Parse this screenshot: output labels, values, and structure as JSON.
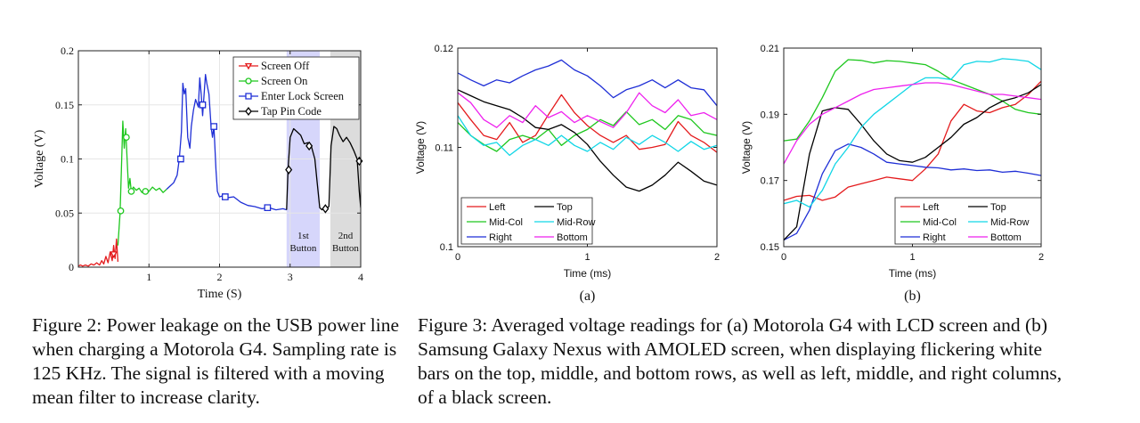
{
  "captions": {
    "fig2": "Figure 2: Power leakage on the USB power line when charging a Motorola G4. Sampling rate is 125 KHz. The signal is filtered with a moving mean filter to increase clarity.",
    "fig3": "Figure 3: Averaged voltage readings for (a) Motorola G4 with LCD screen and (b) Samsung Galaxy Nexus with AMOLED screen, when displaying flickering white bars on the top, middle, and bottom rows, as well as left, middle, and right columns, of a black screen."
  },
  "colors": {
    "red": "#e41a1c",
    "green": "#1ec71e",
    "blue": "#1f2fd6",
    "black": "#000000",
    "cyan": "#11d6e6",
    "magenta": "#ee22ee",
    "shade_blue": "#d6d6fb",
    "shade_gray": "#dcdcdc"
  },
  "chart_data": [
    {
      "id": "fig2",
      "type": "line",
      "xlabel": "Time (S)",
      "ylabel": "Voltage (V)",
      "xlim": [
        0,
        4
      ],
      "ylim": [
        0,
        0.2
      ],
      "xticks": [
        "1",
        "2",
        "3",
        "4"
      ],
      "yticks": [
        "0",
        "0.05",
        "0.1",
        "0.15",
        "0.2"
      ],
      "grid": true,
      "legend_position": "top-right",
      "shaded_regions": [
        {
          "x0": 2.95,
          "x1": 3.42,
          "color": "shade_blue",
          "label_lines": [
            "1st",
            "Button"
          ]
        },
        {
          "x0": 3.57,
          "x1": 4.0,
          "color": "shade_gray",
          "label_lines": [
            "2nd",
            "Button"
          ]
        }
      ],
      "series": [
        {
          "name": "Screen Off",
          "color": "red",
          "marker": "triangle-down",
          "x": [
            0.0,
            0.03,
            0.06,
            0.1,
            0.14,
            0.18,
            0.22,
            0.26,
            0.3,
            0.33,
            0.36,
            0.39,
            0.42,
            0.45,
            0.48,
            0.5,
            0.52,
            0.54,
            0.56
          ],
          "y": [
            0.001,
            0.002,
            0.001,
            0.002,
            0.001,
            0.003,
            0.002,
            0.004,
            0.002,
            0.006,
            0.003,
            0.01,
            0.004,
            0.014,
            0.006,
            0.02,
            0.008,
            0.026,
            0.005
          ],
          "markers_x": [
            0.5
          ],
          "markers_y": [
            0.012
          ]
        },
        {
          "name": "Screen On",
          "color": "green",
          "marker": "circle",
          "x": [
            0.56,
            0.59,
            0.61,
            0.63,
            0.65,
            0.67,
            0.69,
            0.71,
            0.73,
            0.75,
            0.78,
            0.82,
            0.86,
            0.9,
            0.95,
            1.0,
            1.05,
            1.1,
            1.15,
            1.2,
            1.25
          ],
          "y": [
            0.02,
            0.05,
            0.09,
            0.135,
            0.11,
            0.128,
            0.1,
            0.073,
            0.082,
            0.07,
            0.074,
            0.071,
            0.073,
            0.069,
            0.072,
            0.07,
            0.074,
            0.071,
            0.073,
            0.069,
            0.072
          ],
          "markers_x": [
            0.6,
            0.68,
            0.75,
            0.95
          ],
          "markers_y": [
            0.052,
            0.12,
            0.07,
            0.07
          ]
        },
        {
          "name": "Enter Lock Screen",
          "color": "blue",
          "marker": "square",
          "x": [
            1.25,
            1.3,
            1.35,
            1.4,
            1.43,
            1.46,
            1.48,
            1.5,
            1.52,
            1.55,
            1.58,
            1.6,
            1.63,
            1.66,
            1.7,
            1.72,
            1.74,
            1.76,
            1.8,
            1.82,
            1.85,
            1.88,
            1.9,
            1.92,
            1.95,
            1.97,
            2.0,
            2.05,
            2.1,
            2.2,
            2.3,
            2.4,
            2.5,
            2.6,
            2.7,
            2.8,
            2.9,
            2.95
          ],
          "y": [
            0.072,
            0.075,
            0.078,
            0.085,
            0.1,
            0.125,
            0.17,
            0.16,
            0.165,
            0.12,
            0.11,
            0.13,
            0.145,
            0.155,
            0.148,
            0.175,
            0.16,
            0.14,
            0.178,
            0.17,
            0.16,
            0.13,
            0.12,
            0.13,
            0.09,
            0.07,
            0.065,
            0.066,
            0.064,
            0.065,
            0.06,
            0.057,
            0.056,
            0.054,
            0.055,
            0.053,
            0.054,
            0.053
          ],
          "markers_x": [
            1.45,
            1.76,
            1.92,
            2.08,
            2.68
          ],
          "markers_y": [
            0.1,
            0.15,
            0.13,
            0.065,
            0.055
          ]
        },
        {
          "name": "Tap Pin Code",
          "color": "black",
          "marker": "diamond",
          "x": [
            2.95,
            2.97,
            3.0,
            3.05,
            3.1,
            3.15,
            3.2,
            3.25,
            3.3,
            3.35,
            3.38,
            3.42,
            3.45,
            3.5,
            3.55,
            3.58,
            3.62,
            3.66,
            3.7,
            3.75,
            3.8,
            3.85,
            3.9,
            3.95,
            3.98,
            4.0
          ],
          "y": [
            0.053,
            0.09,
            0.12,
            0.128,
            0.125,
            0.122,
            0.114,
            0.115,
            0.112,
            0.1,
            0.08,
            0.055,
            0.053,
            0.054,
            0.056,
            0.112,
            0.13,
            0.128,
            0.122,
            0.116,
            0.12,
            0.115,
            0.108,
            0.1,
            0.07,
            0.055
          ],
          "markers_x": [
            2.98,
            3.27,
            3.5,
            3.98
          ],
          "markers_y": [
            0.09,
            0.112,
            0.054,
            0.098
          ]
        }
      ]
    },
    {
      "id": "fig3a",
      "type": "line",
      "sublabel": "(a)",
      "xlabel": "Time (ms)",
      "ylabel": "Voltage (V)",
      "xlim": [
        0,
        2
      ],
      "ylim": [
        0.1,
        0.12
      ],
      "xticks": [
        "0",
        "1",
        "2"
      ],
      "yticks": [
        "0.1",
        "0.11",
        "0.12"
      ],
      "grid": false,
      "legend_position": "bottom-left",
      "series": [
        {
          "name": "Left",
          "color": "red",
          "x": [
            0,
            0.1,
            0.2,
            0.3,
            0.4,
            0.5,
            0.6,
            0.7,
            0.8,
            0.9,
            1.0,
            1.1,
            1.2,
            1.3,
            1.4,
            1.5,
            1.6,
            1.7,
            1.8,
            1.9,
            2.0
          ],
          "y": [
            0.1145,
            0.1128,
            0.1112,
            0.1108,
            0.1125,
            0.1105,
            0.1112,
            0.1133,
            0.1153,
            0.1135,
            0.1122,
            0.1112,
            0.1105,
            0.1112,
            0.1098,
            0.11,
            0.1103,
            0.1126,
            0.1112,
            0.1105,
            0.1095
          ]
        },
        {
          "name": "Mid-Col",
          "color": "green",
          "x": [
            0,
            0.1,
            0.2,
            0.3,
            0.4,
            0.5,
            0.6,
            0.7,
            0.8,
            0.9,
            1.0,
            1.1,
            1.2,
            1.3,
            1.4,
            1.5,
            1.6,
            1.7,
            1.8,
            1.9,
            2.0
          ],
          "y": [
            0.1125,
            0.1112,
            0.1103,
            0.1096,
            0.1108,
            0.1112,
            0.1108,
            0.1118,
            0.1102,
            0.1112,
            0.1118,
            0.1128,
            0.1122,
            0.1136,
            0.1123,
            0.1128,
            0.1118,
            0.1132,
            0.1128,
            0.1115,
            0.1112
          ]
        },
        {
          "name": "Right",
          "color": "blue",
          "x": [
            0,
            0.1,
            0.2,
            0.3,
            0.4,
            0.5,
            0.6,
            0.7,
            0.8,
            0.9,
            1.0,
            1.1,
            1.2,
            1.3,
            1.4,
            1.5,
            1.6,
            1.7,
            1.8,
            1.9,
            2.0
          ],
          "y": [
            0.1175,
            0.1168,
            0.1162,
            0.1168,
            0.1165,
            0.1172,
            0.1178,
            0.1182,
            0.1188,
            0.1178,
            0.1172,
            0.1162,
            0.115,
            0.1158,
            0.1162,
            0.1168,
            0.116,
            0.1168,
            0.116,
            0.1158,
            0.1142
          ]
        },
        {
          "name": "Top",
          "color": "black",
          "x": [
            0,
            0.1,
            0.2,
            0.3,
            0.4,
            0.5,
            0.6,
            0.7,
            0.8,
            0.9,
            1.0,
            1.1,
            1.2,
            1.3,
            1.4,
            1.5,
            1.6,
            1.7,
            1.8,
            1.9,
            2.0
          ],
          "y": [
            0.1158,
            0.1152,
            0.1146,
            0.1142,
            0.1138,
            0.113,
            0.112,
            0.1118,
            0.1123,
            0.1115,
            0.1103,
            0.1086,
            0.1072,
            0.106,
            0.1056,
            0.1062,
            0.1072,
            0.1085,
            0.1076,
            0.1066,
            0.1062
          ]
        },
        {
          "name": "Mid-Row",
          "color": "cyan",
          "x": [
            0,
            0.1,
            0.2,
            0.3,
            0.4,
            0.5,
            0.6,
            0.7,
            0.8,
            0.9,
            1.0,
            1.1,
            1.2,
            1.3,
            1.4,
            1.5,
            1.6,
            1.7,
            1.8,
            1.9,
            2.0
          ],
          "y": [
            0.1132,
            0.1112,
            0.1102,
            0.1105,
            0.1092,
            0.1102,
            0.1108,
            0.1102,
            0.1112,
            0.1102,
            0.1096,
            0.1105,
            0.1098,
            0.111,
            0.1103,
            0.1112,
            0.1105,
            0.1096,
            0.1106,
            0.1098,
            0.1102
          ]
        },
        {
          "name": "Bottom",
          "color": "magenta",
          "x": [
            0,
            0.1,
            0.2,
            0.3,
            0.4,
            0.5,
            0.6,
            0.7,
            0.8,
            0.9,
            1.0,
            1.1,
            1.2,
            1.3,
            1.4,
            1.5,
            1.6,
            1.7,
            1.8,
            1.9,
            2.0
          ],
          "y": [
            0.1155,
            0.1145,
            0.1128,
            0.112,
            0.1132,
            0.1125,
            0.1142,
            0.113,
            0.1136,
            0.1125,
            0.1132,
            0.1126,
            0.112,
            0.1135,
            0.1155,
            0.1142,
            0.1135,
            0.1148,
            0.1132,
            0.1135,
            0.1128
          ]
        }
      ]
    },
    {
      "id": "fig3b",
      "type": "line",
      "sublabel": "(b)",
      "xlabel": "Time (ms)",
      "ylabel": "Voltage (V)",
      "xlim": [
        0,
        2
      ],
      "ylim": [
        0.15,
        0.21
      ],
      "xticks": [
        "0",
        "1",
        "2"
      ],
      "yticks": [
        "0.15",
        "0.17",
        "0.19",
        "0.21"
      ],
      "grid": false,
      "legend_position": "bottom-right",
      "series": [
        {
          "name": "Left",
          "color": "red",
          "x": [
            0,
            0.1,
            0.2,
            0.3,
            0.4,
            0.5,
            0.6,
            0.7,
            0.8,
            0.9,
            1.0,
            1.1,
            1.2,
            1.3,
            1.4,
            1.5,
            1.6,
            1.7,
            1.8,
            1.9,
            2.0
          ],
          "y": [
            0.164,
            0.1652,
            0.1655,
            0.164,
            0.165,
            0.168,
            0.169,
            0.17,
            0.171,
            0.1705,
            0.17,
            0.1735,
            0.178,
            0.188,
            0.193,
            0.191,
            0.1905,
            0.192,
            0.193,
            0.196,
            0.2
          ]
        },
        {
          "name": "Mid-Col",
          "color": "green",
          "x": [
            0,
            0.1,
            0.2,
            0.3,
            0.4,
            0.5,
            0.6,
            0.7,
            0.8,
            0.9,
            1.0,
            1.1,
            1.2,
            1.3,
            1.4,
            1.5,
            1.6,
            1.7,
            1.8,
            1.9,
            2.0
          ],
          "y": [
            0.182,
            0.1825,
            0.188,
            0.195,
            0.203,
            0.2065,
            0.2063,
            0.2055,
            0.2062,
            0.206,
            0.2055,
            0.205,
            0.203,
            0.2005,
            0.199,
            0.1975,
            0.196,
            0.194,
            0.1915,
            0.1905,
            0.19
          ]
        },
        {
          "name": "Right",
          "color": "blue",
          "x": [
            0,
            0.1,
            0.2,
            0.3,
            0.4,
            0.5,
            0.6,
            0.7,
            0.8,
            0.9,
            1.0,
            1.1,
            1.2,
            1.3,
            1.4,
            1.5,
            1.6,
            1.7,
            1.8,
            1.9,
            2.0
          ],
          "y": [
            0.152,
            0.154,
            0.161,
            0.172,
            0.179,
            0.181,
            0.18,
            0.178,
            0.1755,
            0.175,
            0.1745,
            0.174,
            0.1738,
            0.1732,
            0.1735,
            0.173,
            0.1732,
            0.1725,
            0.1728,
            0.1722,
            0.1715
          ]
        },
        {
          "name": "Top",
          "color": "black",
          "x": [
            0,
            0.1,
            0.2,
            0.3,
            0.4,
            0.5,
            0.6,
            0.7,
            0.8,
            0.9,
            1.0,
            1.1,
            1.2,
            1.3,
            1.4,
            1.5,
            1.6,
            1.7,
            1.8,
            1.9,
            2.0
          ],
          "y": [
            0.152,
            0.156,
            0.178,
            0.191,
            0.192,
            0.1915,
            0.187,
            0.182,
            0.178,
            0.176,
            0.1755,
            0.177,
            0.18,
            0.183,
            0.187,
            0.189,
            0.192,
            0.194,
            0.195,
            0.1965,
            0.199
          ]
        },
        {
          "name": "Mid-Row",
          "color": "cyan",
          "x": [
            0,
            0.1,
            0.2,
            0.3,
            0.4,
            0.5,
            0.6,
            0.7,
            0.8,
            0.9,
            1.0,
            1.1,
            1.2,
            1.3,
            1.4,
            1.5,
            1.6,
            1.7,
            1.8,
            1.9,
            2.0
          ],
          "y": [
            0.163,
            0.164,
            0.162,
            0.167,
            0.175,
            0.18,
            0.186,
            0.19,
            0.193,
            0.196,
            0.199,
            0.201,
            0.201,
            0.2005,
            0.205,
            0.206,
            0.2058,
            0.2068,
            0.2065,
            0.206,
            0.2035
          ]
        },
        {
          "name": "Bottom",
          "color": "magenta",
          "x": [
            0,
            0.1,
            0.2,
            0.3,
            0.4,
            0.5,
            0.6,
            0.7,
            0.8,
            0.9,
            1.0,
            1.1,
            1.2,
            1.3,
            1.4,
            1.5,
            1.6,
            1.7,
            1.8,
            1.9,
            2.0
          ],
          "y": [
            0.175,
            0.182,
            0.187,
            0.19,
            0.192,
            0.194,
            0.196,
            0.1975,
            0.198,
            0.1985,
            0.199,
            0.1995,
            0.1995,
            0.199,
            0.198,
            0.197,
            0.196,
            0.196,
            0.1955,
            0.195,
            0.1945
          ]
        }
      ]
    }
  ]
}
